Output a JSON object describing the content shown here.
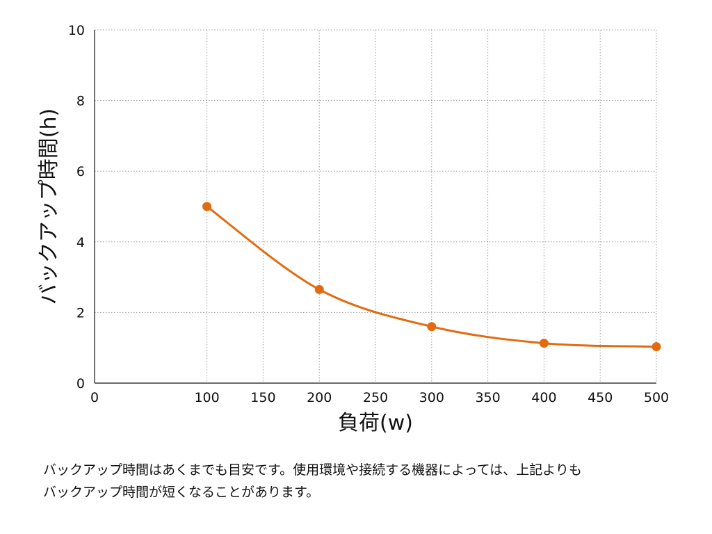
{
  "colors": {
    "series": "#e26b10",
    "grid": "#9a9a9a",
    "axis": "#111111"
  },
  "chart_data": {
    "type": "line",
    "xlabel": "負荷(w)",
    "ylabel": "バックアップ時間(h)",
    "xlim": [
      0,
      500
    ],
    "ylim": [
      0,
      10
    ],
    "x_ticks": [
      "0",
      "100",
      "150",
      "200",
      "250",
      "300",
      "350",
      "400",
      "450",
      "500"
    ],
    "y_ticks": [
      "0",
      "2",
      "4",
      "6",
      "8",
      "10"
    ],
    "grid": true,
    "smooth": true,
    "series": [
      {
        "x": [
          100,
          200,
          300,
          400,
          500
        ],
        "y": [
          5.0,
          2.65,
          1.6,
          1.13,
          1.03
        ]
      }
    ]
  },
  "note": {
    "line1": "バックアップ時間はあくまでも目安です。使用環境や接続する機器によっては、上記よりも",
    "line2": "バックアップ時間が短くなることがあります。"
  }
}
